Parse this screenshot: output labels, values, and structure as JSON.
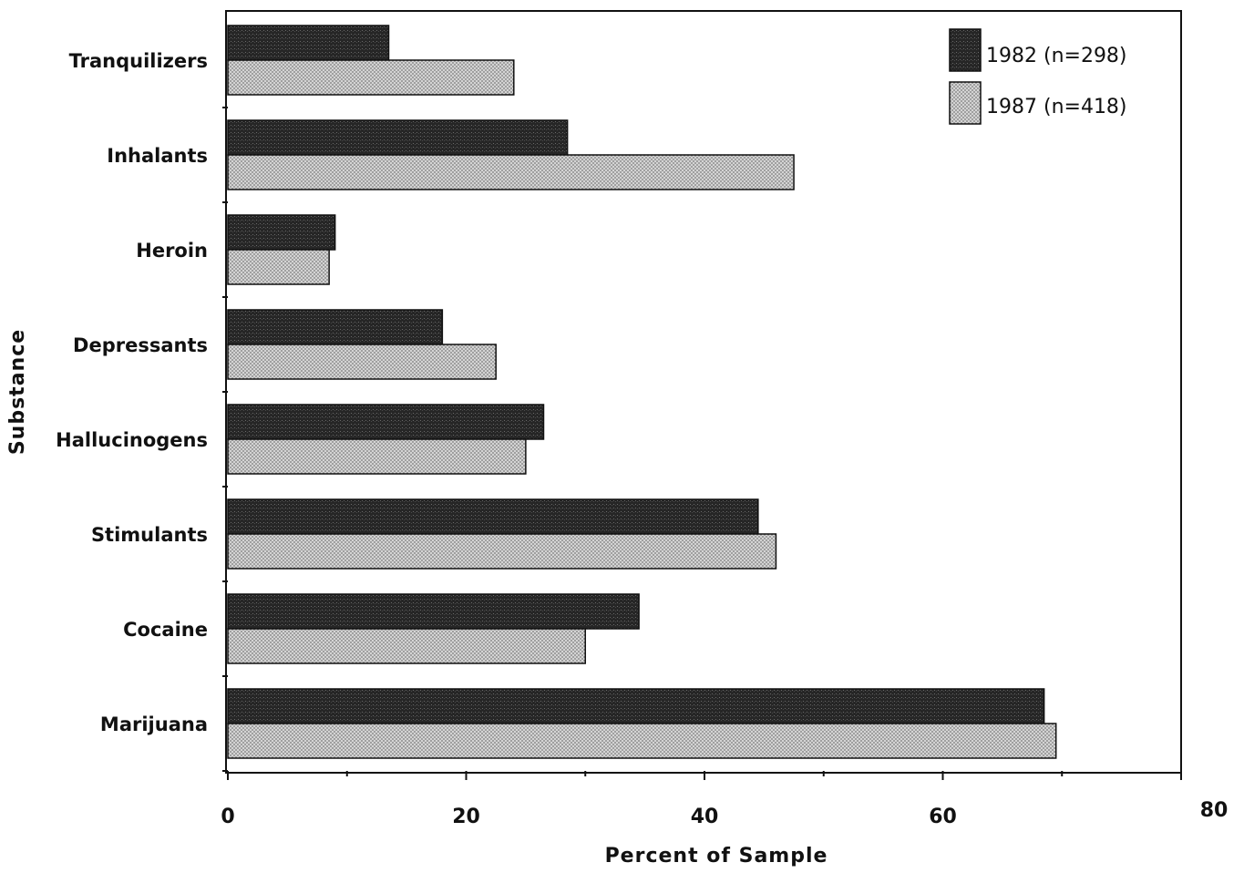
{
  "chart_data": {
    "type": "bar",
    "orientation": "horizontal",
    "categories": [
      "Tranquilizers",
      "Inhalants",
      "Heroin",
      "Depressants",
      "Hallucinogens",
      "Stimulants",
      "Cocaine",
      "Marijuana"
    ],
    "series": [
      {
        "name": "1982 (n=298)",
        "color": "#2b2b2b",
        "values": [
          13.5,
          28.5,
          9,
          18,
          26.5,
          44.5,
          34.5,
          68.5
        ]
      },
      {
        "name": "1987 (n=418)",
        "color": "#c4c4c4",
        "values": [
          24,
          47.5,
          8.5,
          22.5,
          25,
          46,
          30,
          69.5
        ]
      }
    ],
    "title": "",
    "xlabel": "Percent of Sample",
    "ylabel": "Substance",
    "xlim": [
      0,
      80
    ],
    "x_ticks": [
      "0",
      "20",
      "40",
      "60",
      "80"
    ],
    "grid": false,
    "legend_position": "top-right"
  }
}
